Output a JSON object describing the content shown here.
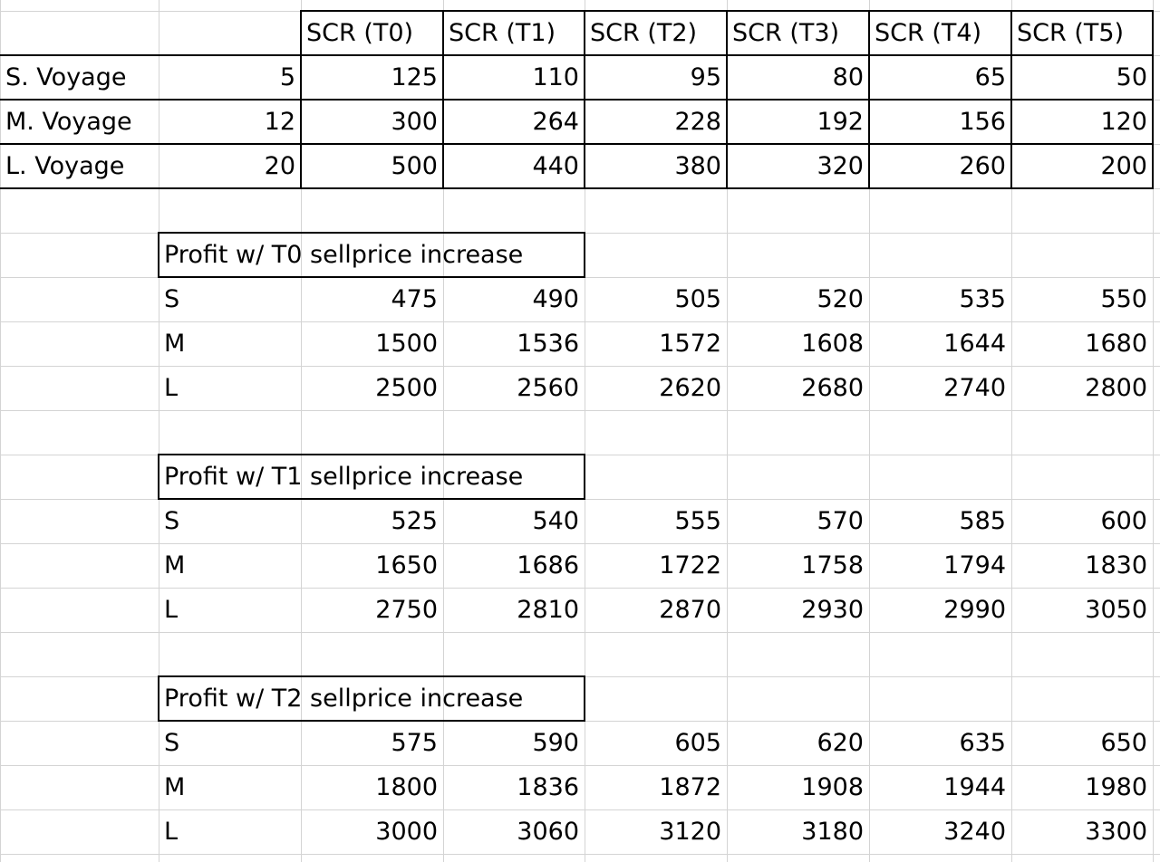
{
  "header_row": [
    "SCR (T0)",
    "SCR (T1)",
    "SCR (T2)",
    "SCR (T3)",
    "SCR (T4)",
    "SCR (T5)"
  ],
  "voyages": [
    {
      "label": "S. Voyage",
      "count": "5",
      "values": [
        "125",
        "110",
        "95",
        "80",
        "65",
        "50"
      ]
    },
    {
      "label": "M. Voyage",
      "count": "12",
      "values": [
        "300",
        "264",
        "228",
        "192",
        "156",
        "120"
      ]
    },
    {
      "label": "L. Voyage",
      "count": "20",
      "values": [
        "500",
        "440",
        "380",
        "320",
        "260",
        "200"
      ]
    }
  ],
  "profit_tables": [
    {
      "title": "Profit w/ T0 sellprice increase",
      "rows": [
        {
          "label": "S",
          "values": [
            "475",
            "490",
            "505",
            "520",
            "535",
            "550"
          ]
        },
        {
          "label": "M",
          "values": [
            "1500",
            "1536",
            "1572",
            "1608",
            "1644",
            "1680"
          ]
        },
        {
          "label": "L",
          "values": [
            "2500",
            "2560",
            "2620",
            "2680",
            "2740",
            "2800"
          ]
        }
      ]
    },
    {
      "title": "Profit w/ T1 sellprice increase",
      "rows": [
        {
          "label": "S",
          "values": [
            "525",
            "540",
            "555",
            "570",
            "585",
            "600"
          ]
        },
        {
          "label": "M",
          "values": [
            "1650",
            "1686",
            "1722",
            "1758",
            "1794",
            "1830"
          ]
        },
        {
          "label": "L",
          "values": [
            "2750",
            "2810",
            "2870",
            "2930",
            "2990",
            "3050"
          ]
        }
      ]
    },
    {
      "title": "Profit w/ T2 sellprice increase",
      "rows": [
        {
          "label": "S",
          "values": [
            "575",
            "590",
            "605",
            "620",
            "635",
            "650"
          ]
        },
        {
          "label": "M",
          "values": [
            "1800",
            "1836",
            "1872",
            "1908",
            "1944",
            "1980"
          ]
        },
        {
          "label": "L",
          "values": [
            "3000",
            "3060",
            "3120",
            "3180",
            "3240",
            "3300"
          ]
        }
      ]
    }
  ],
  "colors": {
    "gridline": "#d4d4d4",
    "border": "#000000",
    "background": "#ffffff"
  }
}
